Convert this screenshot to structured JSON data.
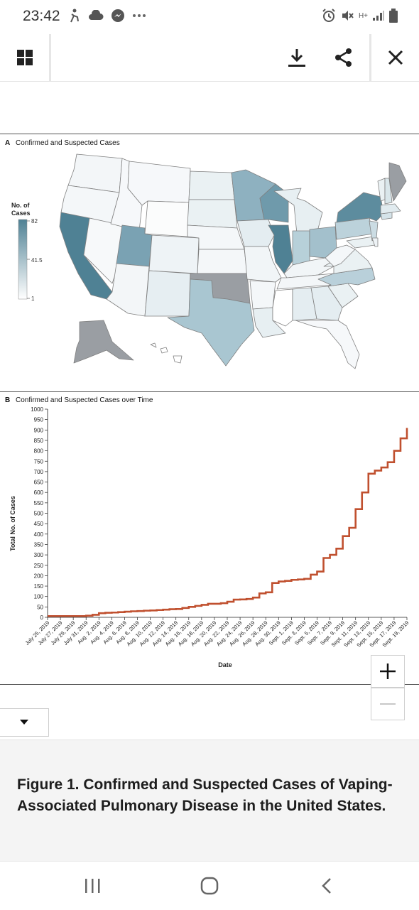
{
  "status": {
    "time": "23:42",
    "network": "H+"
  },
  "toolbar": {
    "icons": [
      "grid-icon",
      "download-icon",
      "share-icon",
      "close-icon"
    ]
  },
  "figure": {
    "panel_a_title": "Confirmed and Suspected Cases",
    "panel_a_letter": "A",
    "legend": {
      "title_line1": "No. of",
      "title_line2": "Cases",
      "max": "82",
      "mid": "41.5",
      "min": "1"
    },
    "panel_b_title": "Confirmed and Suspected Cases over Time",
    "panel_b_letter": "B"
  },
  "colors": {
    "line": "#c0502f",
    "state_high": "#4f8194",
    "state_missing": "#9a9ea3"
  },
  "chart_data": {
    "type": "line",
    "title": "Confirmed and Suspected Cases over Time",
    "xlabel": "Date",
    "ylabel": "Total No. of Cases",
    "ylim": [
      0,
      1000
    ],
    "yticks": [
      0,
      50,
      100,
      150,
      200,
      250,
      300,
      350,
      400,
      450,
      500,
      550,
      600,
      650,
      700,
      750,
      800,
      850,
      900,
      950,
      1000
    ],
    "xtick_labels": [
      "July 25, 2019",
      "July 27, 2019",
      "July 29, 2019",
      "July 31, 2019",
      "Aug. 2, 2019",
      "Aug. 4, 2019",
      "Aug. 6, 2019",
      "Aug. 8, 2019",
      "Aug. 10, 2019",
      "Aug. 12, 2019",
      "Aug. 14, 2019",
      "Aug. 16, 2019",
      "Aug. 18, 2019",
      "Aug. 20, 2019",
      "Aug. 22, 2019",
      "Aug. 24, 2019",
      "Aug. 26, 2019",
      "Aug. 28, 2019",
      "Aug. 30, 2019",
      "Sept. 1, 2019",
      "Sept. 3, 2019",
      "Sept. 5, 2019",
      "Sept. 7, 2019",
      "Sept. 9, 2019",
      "Sept. 11, 2019",
      "Sept. 13, 2019",
      "Sept. 15, 2019",
      "Sept. 17, 2019",
      "Sept. 19, 2019"
    ],
    "series": [
      {
        "x": [
          "July 25, 2019",
          "July 26, 2019",
          "July 27, 2019",
          "July 28, 2019",
          "July 29, 2019",
          "July 30, 2019",
          "July 31, 2019",
          "Aug. 1, 2019",
          "Aug. 2, 2019",
          "Aug. 3, 2019",
          "Aug. 4, 2019",
          "Aug. 5, 2019",
          "Aug. 6, 2019",
          "Aug. 7, 2019",
          "Aug. 8, 2019",
          "Aug. 9, 2019",
          "Aug. 10, 2019",
          "Aug. 11, 2019",
          "Aug. 12, 2019",
          "Aug. 13, 2019",
          "Aug. 14, 2019",
          "Aug. 15, 2019",
          "Aug. 16, 2019",
          "Aug. 17, 2019",
          "Aug. 18, 2019",
          "Aug. 19, 2019",
          "Aug. 20, 2019",
          "Aug. 21, 2019",
          "Aug. 22, 2019",
          "Aug. 23, 2019",
          "Aug. 24, 2019",
          "Aug. 25, 2019",
          "Aug. 26, 2019",
          "Aug. 27, 2019",
          "Aug. 28, 2019",
          "Aug. 29, 2019",
          "Aug. 30, 2019",
          "Aug. 31, 2019",
          "Sept. 1, 2019",
          "Sept. 2, 2019",
          "Sept. 3, 2019",
          "Sept. 4, 2019",
          "Sept. 5, 2019",
          "Sept. 6, 2019",
          "Sept. 7, 2019",
          "Sept. 8, 2019",
          "Sept. 9, 2019",
          "Sept. 10, 2019",
          "Sept. 11, 2019",
          "Sept. 12, 2019",
          "Sept. 13, 2019",
          "Sept. 14, 2019",
          "Sept. 15, 2019",
          "Sept. 16, 2019",
          "Sept. 17, 2019",
          "Sept. 18, 2019",
          "Sept. 19, 2019"
        ],
        "values": [
          6,
          6,
          6,
          6,
          6,
          6,
          8,
          12,
          20,
          22,
          23,
          25,
          27,
          29,
          30,
          32,
          33,
          35,
          37,
          39,
          40,
          45,
          50,
          55,
          60,
          65,
          65,
          68,
          75,
          85,
          86,
          88,
          95,
          115,
          120,
          165,
          172,
          175,
          180,
          182,
          185,
          205,
          220,
          285,
          300,
          330,
          390,
          430,
          520,
          600,
          690,
          705,
          720,
          745,
          800,
          860,
          910
        ]
      }
    ],
    "grid": false
  },
  "map": {
    "states": {
      "CA": 82,
      "IL": 81,
      "WI": 52,
      "NY": 70,
      "MN": 45,
      "UT": 44,
      "TX": 30,
      "IN": 30,
      "OH": 33,
      "PA": 25,
      "NC": 22,
      "NJ": 20,
      "MI": 12,
      "CT": 10,
      "MA": 8,
      "ND": 5,
      "SD": 5,
      "IA": 6,
      "KS": 2,
      "NE": 2,
      "MO": 4,
      "AR": 2,
      "LA": 5,
      "MS": 1,
      "AL": 6,
      "GA": 6,
      "FL": 3,
      "SC": 5,
      "TN": 4,
      "KY": 4,
      "VA": 5,
      "WV": 2,
      "MD": 5,
      "DE": 3,
      "NH": 10,
      "VT": 3,
      "WA": 4,
      "OR": 4,
      "ID": 2,
      "MT": 2,
      "WY": 1,
      "CO": 4,
      "NM": 8,
      "AZ": 3,
      "NV": 3
    },
    "missing_states": [
      "OK",
      "AK",
      "ME"
    ]
  },
  "caption": "Figure 1. Confirmed and Suspected Cases of Vaping-Associated Pulmonary Disease in the United States."
}
